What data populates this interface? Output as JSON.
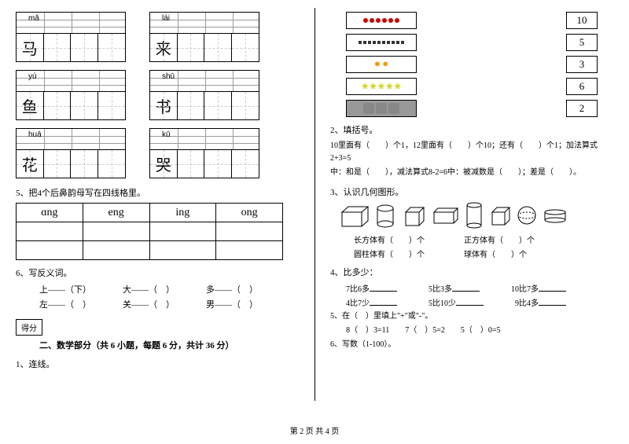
{
  "left": {
    "pinyinBoxes": [
      {
        "py": "mǎ",
        "char": "马"
      },
      {
        "py": "lái",
        "char": "来"
      },
      {
        "py": "yú",
        "char": "鱼"
      },
      {
        "py": "shū",
        "char": "书"
      },
      {
        "py": "huā",
        "char": "花"
      },
      {
        "py": "kū",
        "char": "哭"
      }
    ],
    "q5": "5、把4个后鼻韵母写在四线格里。",
    "finals": [
      "ɑng",
      "eng",
      "ing",
      "ong"
    ],
    "q6": "6、写反义词。",
    "antonyms": [
      [
        "上——（下）",
        "大——（　）",
        "多——（　）"
      ],
      [
        "左——（　）",
        "关——（　）",
        "男——（　）"
      ]
    ],
    "scoreLabel": "得分",
    "sectionTitle": "二、数学部分（共 6 小题，每题 6 分，共计 36 分）",
    "q1": "1、连线。"
  },
  "right": {
    "matchNumbers": [
      "10",
      "5",
      "3",
      "6",
      "2"
    ],
    "q2": "2、填括号。",
    "q2text1": "10里面有（　　）个1，12里面有（　　）个10；还有（　　）个1；加法算式2+3=5",
    "q2text2": "中：和是（　　），减法算式8-2=6中：被减数是（　　）；差是（　　）。",
    "q3": "3、认识几何图形。",
    "shapeLabels": [
      [
        "长方体有（　　）个",
        "正方体有（　　）个"
      ],
      [
        "圆柱体有（　　）个",
        "球体有（　　）个"
      ]
    ],
    "q4": "4、比多少：",
    "compareRows": [
      [
        "7比6多",
        "5比3多",
        "10比7多"
      ],
      [
        "4比7少",
        "5比10少",
        "9比4多"
      ]
    ],
    "q5": "5、在（　）里填上\"+\"或\"-\"。",
    "q5items": "8（　）3=11　　7（　）5=2　　5（　）0=5",
    "q6": "6、写数（1-100）。"
  },
  "footer": "第 2 页 共 4 页"
}
